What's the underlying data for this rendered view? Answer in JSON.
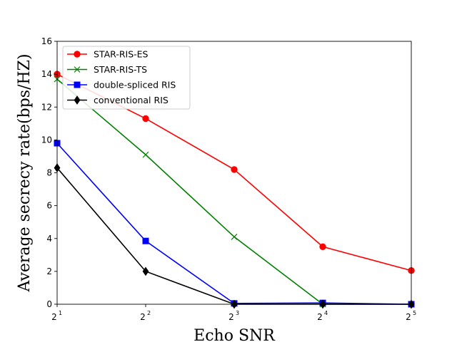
{
  "chart_data": {
    "type": "line",
    "title": "",
    "xlabel": "Echo SNR",
    "ylabel": "Average secrecy rate(bps/HZ)",
    "x_base": "2",
    "x_exponents": [
      1,
      2,
      3,
      4,
      5
    ],
    "ylim": [
      0,
      16
    ],
    "yticks": [
      0,
      2,
      4,
      6,
      8,
      10,
      12,
      14,
      16
    ],
    "legend_position": "upper-left",
    "series": [
      {
        "name": "STAR-RIS-ES",
        "color": "#ff0000",
        "marker": "circle",
        "values": [
          14.0,
          11.3,
          8.2,
          3.5,
          2.05
        ]
      },
      {
        "name": "STAR-RIS-TS",
        "color": "#008000",
        "marker": "x",
        "values": [
          13.7,
          9.1,
          4.1,
          0.0,
          0.0
        ]
      },
      {
        "name": "double-spliced RIS",
        "color": "#0000ff",
        "marker": "square",
        "values": [
          9.8,
          3.85,
          0.05,
          0.08,
          0.0
        ]
      },
      {
        "name": "conventional RIS",
        "color": "#000000",
        "marker": "diamond",
        "values": [
          8.3,
          2.0,
          0.0,
          0.0,
          0.0
        ]
      }
    ]
  }
}
